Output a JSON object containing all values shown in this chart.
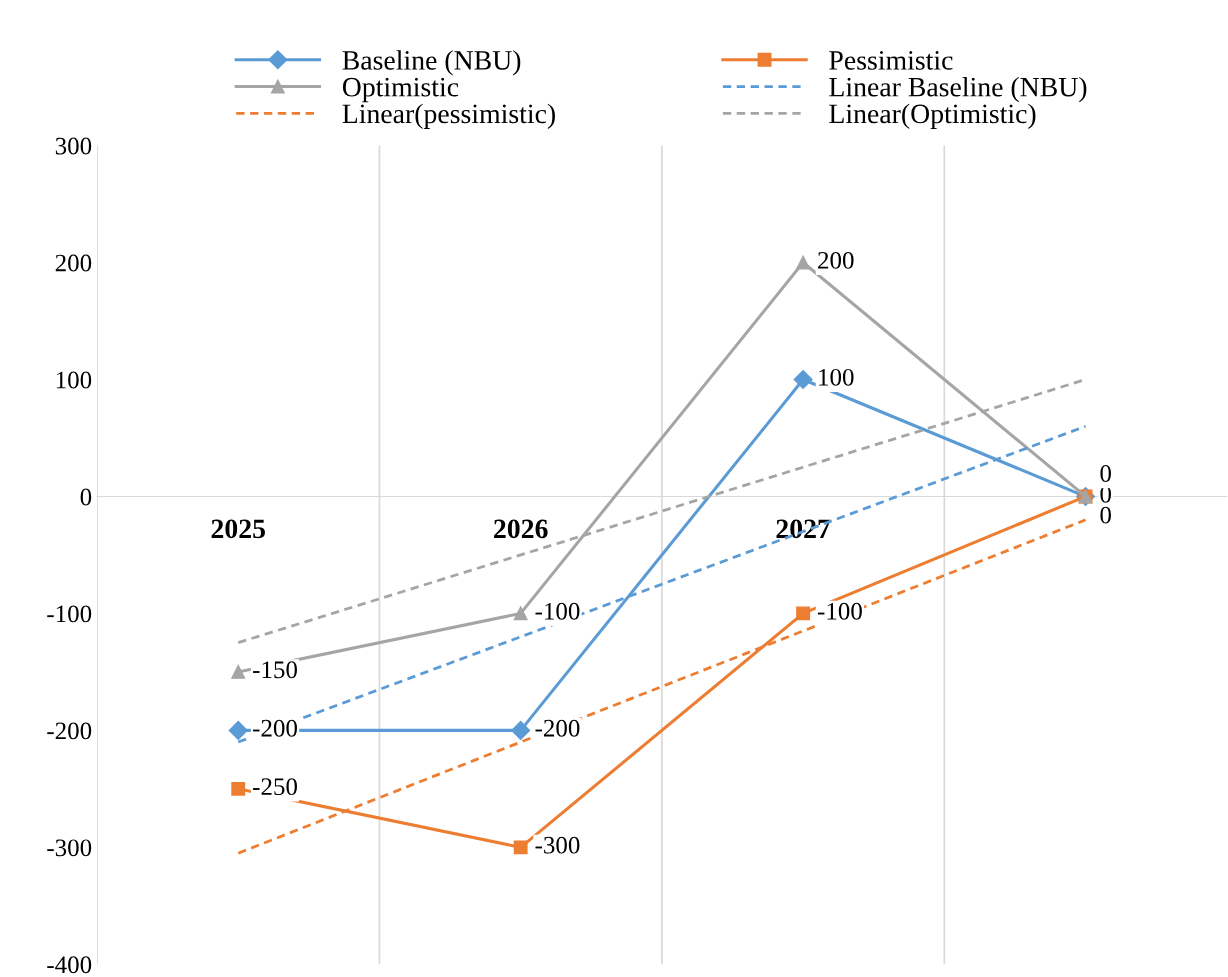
{
  "chart_data": {
    "type": "line",
    "categories": [
      "2025",
      "2026",
      "2027",
      null
    ],
    "series": [
      {
        "name": "Baseline (NBU)",
        "color": "#5b9bd5",
        "marker": "diamond",
        "values": [
          -200,
          -200,
          100,
          0
        ],
        "value_labels": [
          "-200",
          "-200",
          "100",
          "0"
        ]
      },
      {
        "name": "Pessimistic",
        "color": "#ed7d31",
        "marker": "square",
        "values": [
          -250,
          -300,
          -100,
          0
        ],
        "value_labels": [
          "-250",
          "-300",
          "-100",
          "0"
        ]
      },
      {
        "name": "Optimistic",
        "color": "#a5a5a5",
        "marker": "triangle",
        "values": [
          -150,
          -100,
          200,
          0
        ],
        "value_labels": [
          "-150",
          "-100",
          "200",
          "0"
        ]
      },
      {
        "name": "Linear Baseline (NBU)",
        "color": "#5b9bd5",
        "line_style": "dashed",
        "values": [
          -210,
          -120,
          -30,
          60
        ]
      },
      {
        "name": "Linear(pessimistic)",
        "color": "#ed7d31",
        "line_style": "dashed",
        "values": [
          -305,
          -210,
          -115,
          -20
        ]
      },
      {
        "name": "Linear(Optimistic)",
        "color": "#a5a5a5",
        "line_style": "dashed",
        "values": [
          -125,
          -50,
          25,
          100
        ]
      }
    ],
    "ylim": [
      -400,
      300
    ],
    "yticks": [
      -400,
      -300,
      -200,
      -100,
      0,
      100,
      200,
      300
    ],
    "grid": "x",
    "legend": "top"
  }
}
